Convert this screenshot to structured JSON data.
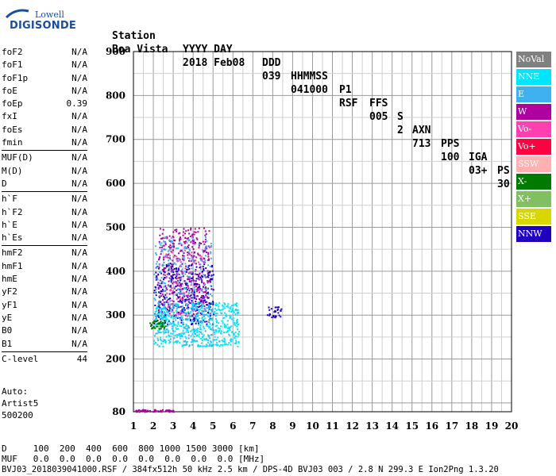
{
  "logo": {
    "top": "Lowell",
    "main": "DIGISONDE"
  },
  "header": {
    "labels": [
      "Station",
      "YYYY DAY",
      "DDD",
      "HHMMSS",
      "P1",
      "FFS",
      "S",
      "AXN",
      "PPS",
      "IGA",
      "PS"
    ],
    "values": [
      "Boa Vista",
      "2018 Feb08",
      "039",
      "041000",
      "RSF",
      "005",
      "2",
      "713",
      "100",
      "03+",
      "30"
    ]
  },
  "params": [
    {
      "group": [
        {
          "name": "foF2",
          "value": "N/A"
        },
        {
          "name": "foF1",
          "value": "N/A"
        },
        {
          "name": "foF1p",
          "value": "N/A"
        },
        {
          "name": "foE",
          "value": "N/A"
        },
        {
          "name": "foEp",
          "value": "0.39"
        },
        {
          "name": "fxI",
          "value": "N/A"
        },
        {
          "name": "foEs",
          "value": "N/A"
        },
        {
          "name": "fmin",
          "value": "N/A"
        }
      ]
    },
    {
      "group": [
        {
          "name": "MUF(D)",
          "value": "N/A"
        },
        {
          "name": "M(D)",
          "value": "N/A"
        },
        {
          "name": "D",
          "value": "N/A"
        }
      ]
    },
    {
      "group": [
        {
          "name": "h`F",
          "value": "N/A"
        },
        {
          "name": "h`F2",
          "value": "N/A"
        },
        {
          "name": "h`E",
          "value": "N/A"
        },
        {
          "name": "h`Es",
          "value": "N/A"
        }
      ]
    },
    {
      "group": [
        {
          "name": "hmF2",
          "value": "N/A"
        },
        {
          "name": "hmF1",
          "value": "N/A"
        },
        {
          "name": "hmE",
          "value": "N/A"
        },
        {
          "name": "yF2",
          "value": "N/A"
        },
        {
          "name": "yF1",
          "value": "N/A"
        },
        {
          "name": "yE",
          "value": "N/A"
        },
        {
          "name": "B0",
          "value": "N/A"
        },
        {
          "name": "B1",
          "value": "N/A"
        }
      ]
    },
    {
      "group": [
        {
          "name": "C-level",
          "value": "44"
        }
      ]
    }
  ],
  "autoscale": {
    "line1": "Auto:",
    "line2": "Artist5",
    "line3": "500200"
  },
  "footer": {
    "d_row": "D     100  200  400  600  800 1000 1500 3000 [km]",
    "muf_row": "MUF   0.0  0.0  0.0  0.0  0.0  0.0  0.0  0.0 [MHz]",
    "info": "BVJ03_2018039041000.RSF / 384fx512h 50 kHz 2.5 km / DPS-4D BVJ03 003 / 2.8 N 299.3 E Ion2Png 1.3.20"
  },
  "chart_data": {
    "type": "scatter",
    "xlim": [
      1,
      20
    ],
    "ylim": [
      80,
      900
    ],
    "x_ticks": [
      1,
      2,
      3,
      4,
      5,
      6,
      7,
      8,
      9,
      10,
      11,
      12,
      13,
      14,
      15,
      16,
      17,
      18,
      19,
      20
    ],
    "y_ticks": [
      80,
      200,
      300,
      400,
      500,
      600,
      700,
      800,
      900
    ],
    "grid": true,
    "legend_position": "right",
    "legend": [
      {
        "label": "NoVal",
        "color": "#808080"
      },
      {
        "label": "NNE",
        "color": "#00e5ff"
      },
      {
        "label": "E",
        "color": "#3fb0f0"
      },
      {
        "label": "W",
        "color": "#b000a0"
      },
      {
        "label": "Vo-",
        "color": "#ff40b0"
      },
      {
        "label": "Vo+",
        "color": "#ff0040"
      },
      {
        "label": "SSW",
        "color": "#ffb0b0"
      },
      {
        "label": "X-",
        "color": "#007a00"
      },
      {
        "label": "X+",
        "color": "#80c060"
      },
      {
        "label": "SSE",
        "color": "#d8d800"
      },
      {
        "label": "NNW",
        "color": "#2000c0"
      }
    ],
    "clusters": [
      {
        "series": "W",
        "color": "#b000a0",
        "fmin": 2.2,
        "fmax": 4.8,
        "hmin": 300,
        "hmax": 500,
        "count": 450
      },
      {
        "series": "NNW",
        "color": "#2000c0",
        "fmin": 2.0,
        "fmax": 5.0,
        "hmin": 280,
        "hmax": 420,
        "count": 320
      },
      {
        "series": "NNE",
        "color": "#00e5ff",
        "fmin": 2.0,
        "fmax": 6.3,
        "hmin": 230,
        "hmax": 330,
        "count": 520
      },
      {
        "series": "E",
        "color": "#3fb0f0",
        "fmin": 2.0,
        "fmax": 5.0,
        "hmin": 230,
        "hmax": 480,
        "count": 300
      },
      {
        "series": "Vo-",
        "color": "#ff40b0",
        "fmin": 2.5,
        "fmax": 4.5,
        "hmin": 300,
        "hmax": 450,
        "count": 60
      },
      {
        "series": "X-",
        "color": "#007a00",
        "fmin": 1.8,
        "fmax": 2.6,
        "hmin": 270,
        "hmax": 290,
        "count": 40
      },
      {
        "series": "NNW",
        "color": "#2000c0",
        "fmin": 7.7,
        "fmax": 8.4,
        "hmin": 295,
        "hmax": 320,
        "count": 30
      },
      {
        "series": "W",
        "color": "#b000a0",
        "fmin": 1.0,
        "fmax": 3.0,
        "hmin": 81,
        "hmax": 86,
        "count": 60
      }
    ]
  }
}
